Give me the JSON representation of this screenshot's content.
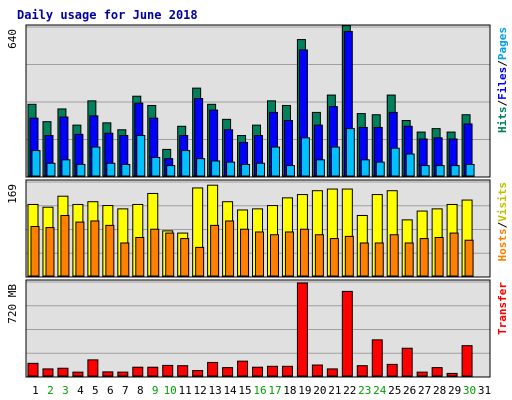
{
  "chart_data": [
    {
      "type": "bar",
      "title": "Daily usage for June 2018",
      "ylabel_parts": [
        "Hits",
        "Files",
        "Pages"
      ],
      "ytick": "640",
      "ymax": 640,
      "categories": [
        "1",
        "2",
        "3",
        "4",
        "5",
        "6",
        "7",
        "8",
        "9",
        "10",
        "11",
        "12",
        "13",
        "14",
        "15",
        "16",
        "17",
        "18",
        "19",
        "20",
        "21",
        "22",
        "23",
        "24",
        "25",
        "26",
        "27",
        "28",
        "29",
        "30",
        "31"
      ],
      "weekend_days": [
        "2",
        "3",
        "9",
        "10",
        "16",
        "17",
        "23",
        "24",
        "30"
      ],
      "series": [
        {
          "name": "Hits",
          "color": "#00805c",
          "values": [
            310,
            235,
            290,
            220,
            325,
            230,
            200,
            345,
            305,
            115,
            215,
            380,
            310,
            245,
            175,
            220,
            325,
            305,
            590,
            275,
            350,
            650,
            270,
            265,
            350,
            240,
            190,
            205,
            190,
            265,
            0
          ]
        },
        {
          "name": "Files",
          "color": "#0000ff",
          "values": [
            250,
            175,
            255,
            180,
            260,
            185,
            175,
            315,
            250,
            75,
            175,
            335,
            285,
            200,
            145,
            175,
            275,
            240,
            545,
            220,
            300,
            625,
            210,
            210,
            275,
            215,
            160,
            165,
            160,
            225,
            0
          ]
        },
        {
          "name": "Pages",
          "color": "#00c0ff",
          "values": [
            110,
            55,
            70,
            50,
            125,
            55,
            50,
            175,
            80,
            45,
            110,
            75,
            65,
            60,
            50,
            55,
            125,
            45,
            165,
            70,
            125,
            205,
            70,
            60,
            120,
            95,
            45,
            45,
            45,
            50,
            0
          ]
        }
      ]
    },
    {
      "type": "bar",
      "ylabel_parts": [
        "Hosts",
        "Visits"
      ],
      "ytick": "169",
      "ymax": 169,
      "categories": [
        "1",
        "2",
        "3",
        "4",
        "5",
        "6",
        "7",
        "8",
        "9",
        "10",
        "11",
        "12",
        "13",
        "14",
        "15",
        "16",
        "17",
        "18",
        "19",
        "20",
        "21",
        "22",
        "23",
        "24",
        "25",
        "26",
        "27",
        "28",
        "29",
        "30",
        "31"
      ],
      "series": [
        {
          "name": "Visits",
          "color": "#ffff00",
          "values": [
            130,
            125,
            145,
            130,
            135,
            128,
            122,
            130,
            150,
            82,
            78,
            160,
            165,
            135,
            120,
            122,
            128,
            142,
            148,
            155,
            158,
            158,
            110,
            148,
            155,
            102,
            118,
            122,
            130,
            138,
            0
          ]
        },
        {
          "name": "Hosts",
          "color": "#ff8000",
          "values": [
            90,
            88,
            110,
            98,
            100,
            92,
            60,
            70,
            85,
            78,
            68,
            52,
            92,
            100,
            85,
            80,
            75,
            80,
            85,
            75,
            68,
            72,
            60,
            60,
            75,
            60,
            68,
            70,
            78,
            65,
            0
          ]
        }
      ]
    },
    {
      "type": "bar",
      "ylabel_parts": [
        "Transfer"
      ],
      "ytick": "720 MB",
      "ymax": 720,
      "categories": [
        "1",
        "2",
        "3",
        "4",
        "5",
        "6",
        "7",
        "8",
        "9",
        "10",
        "11",
        "12",
        "13",
        "14",
        "15",
        "16",
        "17",
        "18",
        "19",
        "20",
        "21",
        "22",
        "23",
        "24",
        "25",
        "26",
        "27",
        "28",
        "29",
        "30",
        "31"
      ],
      "series": [
        {
          "name": "Transfer",
          "color": "#ff0000",
          "values": [
            98,
            55,
            60,
            30,
            125,
            32,
            30,
            68,
            68,
            82,
            80,
            42,
            105,
            65,
            115,
            68,
            75,
            75,
            720,
            85,
            55,
            655,
            80,
            280,
            90,
            215,
            30,
            65,
            20,
            235,
            0
          ]
        }
      ]
    }
  ],
  "colors": {
    "title": "#0000a0",
    "background": "#e0e0e0",
    "weekend_label": "#00a000",
    "weekday_label": "#000000",
    "grid": "#a0a0a0"
  }
}
